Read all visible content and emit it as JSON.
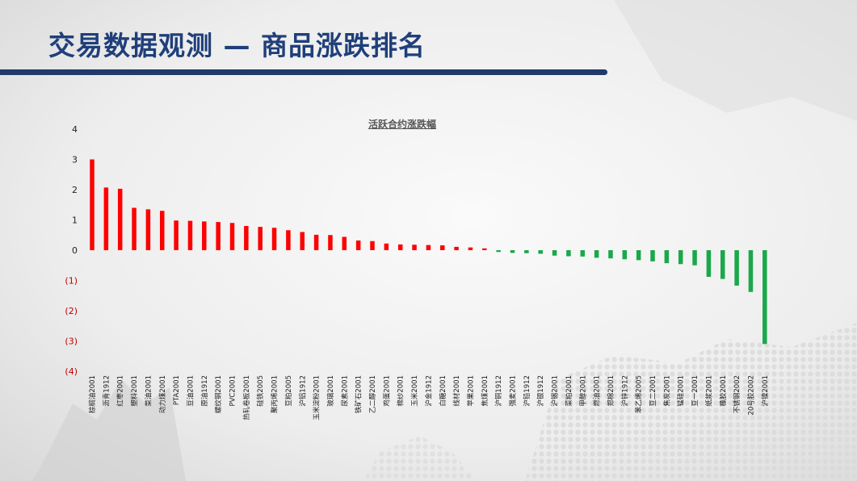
{
  "header": {
    "title": "交易数据观测 — 商品涨跌排名"
  },
  "colors": {
    "up": "#ff0000",
    "down": "#1aa84a",
    "negative_tick": "#c00000",
    "title": "#1f3f7a"
  },
  "chart_data": {
    "type": "bar",
    "title": "活跃合约涨跌幅",
    "xlabel": "",
    "ylabel": "",
    "ylim": [
      -4,
      4
    ],
    "yticks": [
      "4",
      "3",
      "2",
      "1",
      "0",
      "(1)",
      "(2)",
      "(3)",
      "(4)"
    ],
    "grid": false,
    "legend": "none",
    "categories": [
      "棕榈油2001",
      "沥青1912",
      "红枣2001",
      "塑料2001",
      "菜油2001",
      "动力煤2001",
      "PTA2001",
      "豆油2001",
      "原油1912",
      "螺纹钢2001",
      "PVC2001",
      "热轧卷板2001",
      "硅铁2005",
      "聚丙烯2001",
      "豆粕2005",
      "沪铝1912",
      "玉米淀粉2001",
      "玻璃2001",
      "尿素2001",
      "铁矿石2001",
      "乙二醇2001",
      "鸡蛋2001",
      "棉纱2001",
      "玉米2001",
      "沪金1912",
      "白糖2001",
      "线材2001",
      "苹果2001",
      "焦煤2001",
      "沪铜1912",
      "强麦2001",
      "沪铅1912",
      "沪银1912",
      "沪锡2001",
      "菜粕2001",
      "甲醇2001",
      "燃油2001",
      "郑棉2001",
      "沪锌1912",
      "苯乙烯2005",
      "豆二2001",
      "焦炭2001",
      "锰硅2001",
      "豆一2001",
      "纸浆2001",
      "橡胶2001",
      "不锈钢2002",
      "20号胶2002",
      "沪镍2001"
    ],
    "values": [
      3.0,
      2.07,
      2.03,
      1.4,
      1.35,
      1.3,
      0.98,
      0.97,
      0.95,
      0.93,
      0.9,
      0.8,
      0.77,
      0.74,
      0.66,
      0.6,
      0.51,
      0.5,
      0.44,
      0.32,
      0.3,
      0.22,
      0.19,
      0.18,
      0.17,
      0.16,
      0.11,
      0.09,
      0.06,
      -0.06,
      -0.09,
      -0.1,
      -0.12,
      -0.18,
      -0.2,
      -0.21,
      -0.25,
      -0.27,
      -0.3,
      -0.33,
      -0.37,
      -0.43,
      -0.46,
      -0.5,
      -0.88,
      -0.95,
      -1.17,
      -1.38,
      -3.1
    ]
  }
}
